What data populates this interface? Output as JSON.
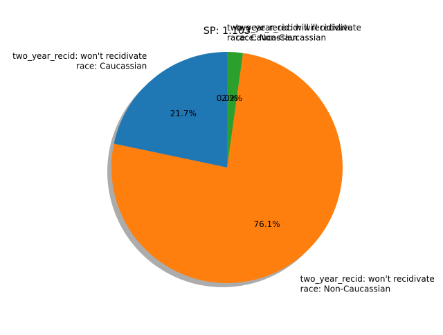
{
  "chart_data": {
    "type": "pie",
    "title": "SP: 1.103",
    "start_angle_deg": 90,
    "shadow": true,
    "slices": [
      {
        "label_lines": [
          "two_year_recid: won't recidivate",
          "race: Caucassian"
        ],
        "value_pct": 21.7,
        "pct_label": "21.7%",
        "color": "#1f77b4"
      },
      {
        "label_lines": [
          "two_year_recid: won't recidivate",
          "race: Non-Caucassian"
        ],
        "value_pct": 76.1,
        "pct_label": "76.1%",
        "color": "#ff7f0e"
      },
      {
        "label_lines": [
          "two_year_recid: will recidivate",
          "race: Non-Caucassian"
        ],
        "value_pct": 2.2,
        "pct_label": "2.2%",
        "color": "#2ca02c"
      },
      {
        "label_lines": [
          "two_year_recid: will recidivate",
          "race: Caucassian"
        ],
        "value_pct": 0.0,
        "pct_label": "0.0%",
        "color": "#d62728"
      }
    ]
  }
}
